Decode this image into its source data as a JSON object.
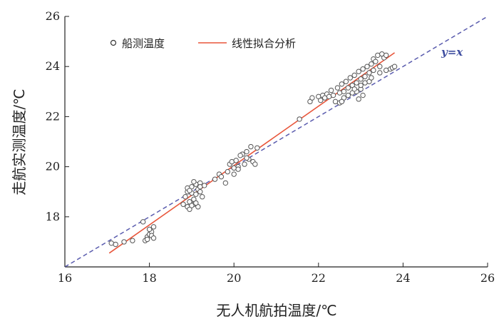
{
  "chart_data": {
    "type": "scatter",
    "xlabel": "无人机航拍温度/℃",
    "ylabel": "走航实测温度/℃",
    "xlim": [
      16,
      26
    ],
    "ylim": [
      16,
      26
    ],
    "x_ticks": [
      16,
      18,
      20,
      22,
      24,
      26
    ],
    "y_ticks": [
      18,
      20,
      22,
      24,
      26
    ],
    "x_tick_labels": [
      "16",
      "18",
      "20",
      "22",
      "24",
      "26"
    ],
    "y_tick_labels": [
      "18",
      "20",
      "22",
      "24",
      "26"
    ],
    "legend": {
      "position": "top-left",
      "entries": [
        {
          "label": "船测温度",
          "marker": "open-circle"
        },
        {
          "label": "线性拟合分析",
          "marker": "line"
        }
      ]
    },
    "series": [
      {
        "name": "船测温度",
        "kind": "points",
        "color": "#555555",
        "points": [
          [
            17.1,
            16.95
          ],
          [
            17.2,
            16.9
          ],
          [
            17.4,
            17.0
          ],
          [
            17.6,
            17.05
          ],
          [
            17.85,
            17.8
          ],
          [
            17.9,
            17.05
          ],
          [
            17.95,
            17.2
          ],
          [
            17.95,
            17.1
          ],
          [
            18.0,
            17.3
          ],
          [
            18.05,
            17.4
          ],
          [
            18.0,
            17.5
          ],
          [
            18.1,
            17.6
          ],
          [
            18.05,
            17.25
          ],
          [
            18.1,
            17.15
          ],
          [
            18.8,
            18.5
          ],
          [
            18.85,
            18.8
          ],
          [
            18.9,
            18.4
          ],
          [
            18.9,
            19.0
          ],
          [
            18.95,
            18.3
          ],
          [
            18.95,
            18.6
          ],
          [
            19.0,
            18.95
          ],
          [
            19.0,
            19.2
          ],
          [
            19.05,
            18.5
          ],
          [
            19.05,
            18.7
          ],
          [
            19.1,
            19.3
          ],
          [
            19.1,
            18.9
          ],
          [
            19.15,
            18.4
          ],
          [
            19.15,
            19.1
          ],
          [
            19.2,
            19.35
          ],
          [
            19.2,
            19.0
          ],
          [
            19.25,
            18.8
          ],
          [
            19.3,
            19.25
          ],
          [
            18.9,
            19.15
          ],
          [
            19.0,
            18.45
          ],
          [
            19.1,
            18.55
          ],
          [
            19.2,
            19.2
          ],
          [
            19.05,
            19.4
          ],
          [
            18.95,
            19.05
          ],
          [
            19.55,
            19.5
          ],
          [
            19.65,
            19.7
          ],
          [
            19.7,
            19.6
          ],
          [
            19.8,
            19.35
          ],
          [
            19.85,
            19.8
          ],
          [
            19.9,
            20.1
          ],
          [
            19.95,
            20.2
          ],
          [
            20.0,
            19.95
          ],
          [
            20.0,
            19.7
          ],
          [
            20.05,
            20.25
          ],
          [
            20.1,
            20.0
          ],
          [
            20.1,
            19.9
          ],
          [
            20.2,
            20.5
          ],
          [
            20.25,
            20.1
          ],
          [
            20.3,
            20.6
          ],
          [
            20.35,
            20.3
          ],
          [
            20.4,
            20.8
          ],
          [
            20.45,
            20.2
          ],
          [
            20.5,
            20.1
          ],
          [
            20.55,
            20.75
          ],
          [
            20.3,
            20.35
          ],
          [
            20.15,
            20.45
          ],
          [
            21.55,
            21.9
          ],
          [
            21.8,
            22.6
          ],
          [
            21.85,
            22.75
          ],
          [
            22.0,
            22.8
          ],
          [
            22.05,
            22.65
          ],
          [
            22.1,
            22.85
          ],
          [
            22.15,
            22.75
          ],
          [
            22.2,
            22.9
          ],
          [
            22.25,
            22.8
          ],
          [
            22.3,
            23.05
          ],
          [
            22.35,
            22.85
          ],
          [
            22.4,
            22.6
          ],
          [
            22.45,
            23.15
          ],
          [
            22.5,
            22.95
          ],
          [
            22.5,
            22.55
          ],
          [
            22.55,
            23.3
          ],
          [
            22.6,
            23.0
          ],
          [
            22.6,
            22.75
          ],
          [
            22.65,
            23.4
          ],
          [
            22.7,
            23.15
          ],
          [
            22.7,
            22.85
          ],
          [
            22.75,
            23.55
          ],
          [
            22.8,
            23.25
          ],
          [
            22.8,
            22.95
          ],
          [
            22.85,
            23.65
          ],
          [
            22.9,
            23.35
          ],
          [
            22.9,
            23.0
          ],
          [
            22.95,
            23.8
          ],
          [
            23.0,
            23.5
          ],
          [
            23.0,
            23.1
          ],
          [
            23.05,
            23.9
          ],
          [
            23.1,
            23.6
          ],
          [
            23.1,
            23.35
          ],
          [
            23.15,
            24.0
          ],
          [
            23.2,
            23.75
          ],
          [
            23.2,
            23.4
          ],
          [
            23.25,
            24.1
          ],
          [
            23.3,
            23.85
          ],
          [
            23.3,
            24.3
          ],
          [
            23.35,
            24.2
          ],
          [
            23.4,
            24.45
          ],
          [
            23.45,
            24.0
          ],
          [
            23.5,
            24.5
          ],
          [
            23.55,
            24.35
          ],
          [
            23.6,
            24.45
          ],
          [
            23.45,
            23.75
          ],
          [
            23.6,
            23.85
          ],
          [
            23.7,
            23.9
          ],
          [
            23.75,
            23.95
          ],
          [
            23.8,
            24.0
          ],
          [
            22.95,
            22.7
          ],
          [
            23.05,
            22.85
          ],
          [
            22.55,
            22.6
          ],
          [
            22.85,
            23.1
          ],
          [
            23.25,
            23.55
          ],
          [
            23.0,
            23.25
          ]
        ]
      },
      {
        "name": "线性拟合分析",
        "kind": "line",
        "color": "#e8553a",
        "x": [
          17.05,
          23.8
        ],
        "y": [
          16.55,
          24.55
        ]
      },
      {
        "name": "y=x",
        "kind": "reference-line",
        "color": "#5a5cae",
        "x": [
          16,
          26
        ],
        "y": [
          16,
          26
        ]
      }
    ],
    "annotation": "y=x",
    "grid": false
  }
}
